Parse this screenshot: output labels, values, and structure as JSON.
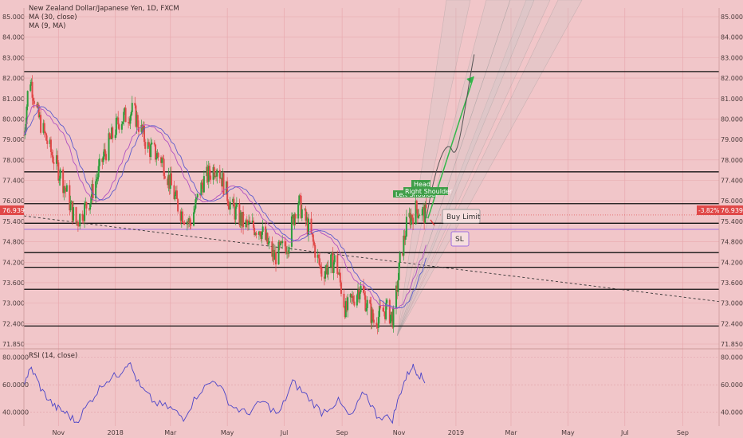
{
  "legend": {
    "title": "New Zealand Dollar/Japanese Yen, 1D, FXCM",
    "ma1": "MA (30, close)",
    "ma2": "MA (9, MA)",
    "rsi": "RSI (14, close)"
  },
  "price_marker": {
    "left": "76.939",
    "change": "-3.82%",
    "right": "76.939"
  },
  "annotations": {
    "head": "Head",
    "right_shoulder": "Right Shoulder",
    "left_shoulder": "Left Shoulder",
    "buy_limit": "Buy Limit",
    "sl": "SL"
  },
  "colors": {
    "background": "#f1c6c9",
    "bull": "#2e9e3c",
    "bear": "#e04848",
    "ma1": "#b050c0",
    "ma2": "#5c5ccc",
    "rsi": "#4a44c8",
    "projection": "#33b84a",
    "sl_box": "#a070e0"
  },
  "chart_data": [
    {
      "type": "candlestick",
      "title": "New Zealand Dollar/Japanese Yen, 1D, FXCM",
      "x_labels": [
        "Nov",
        "2018",
        "Mar",
        "May",
        "Jul",
        "Sep",
        "Nov",
        "2019",
        "Mar",
        "May",
        "Jul",
        "Sep"
      ],
      "x_range": [
        "2017-09-25",
        "2019-10-10"
      ],
      "ylim": [
        71.5,
        85.4
      ],
      "y_ticks": [
        "85.000",
        "84.000",
        "83.000",
        "82.000",
        "81.000",
        "80.000",
        "79.000",
        "78.000",
        "77.400",
        "76.000",
        "75.400",
        "74.800",
        "74.200",
        "73.600",
        "73.000",
        "72.400",
        "71.850"
      ],
      "horizontal_levels": [
        82.8,
        78.7,
        77.4,
        76.6,
        75.4,
        74.8,
        73.9,
        72.4
      ],
      "last_price": 76.939,
      "trendline": {
        "from": [
          "2017-09-25",
          76.9
        ],
        "to": [
          "2019-10-10",
          73.4
        ]
      },
      "price_path": [
        [
          "2017-09-25",
          80.2
        ],
        [
          "2017-10-01",
          82.7
        ],
        [
          "2017-10-10",
          81.0
        ],
        [
          "2017-10-22",
          79.7
        ],
        [
          "2017-11-05",
          78.4
        ],
        [
          "2017-11-20",
          76.6
        ],
        [
          "2017-12-05",
          77.6
        ],
        [
          "2017-12-20",
          79.4
        ],
        [
          "2018-01-05",
          80.8
        ],
        [
          "2018-01-20",
          81.2
        ],
        [
          "2018-02-05",
          79.7
        ],
        [
          "2018-02-20",
          79.2
        ],
        [
          "2018-03-10",
          77.2
        ],
        [
          "2018-03-22",
          76.6
        ],
        [
          "2018-04-05",
          78.3
        ],
        [
          "2018-04-20",
          79.0
        ],
        [
          "2018-05-05",
          77.3
        ],
        [
          "2018-05-20",
          76.5
        ],
        [
          "2018-06-05",
          76.4
        ],
        [
          "2018-06-20",
          75.2
        ],
        [
          "2018-07-05",
          75.8
        ],
        [
          "2018-07-15",
          77.6
        ],
        [
          "2018-07-28",
          76.3
        ],
        [
          "2018-08-10",
          74.6
        ],
        [
          "2018-08-25",
          75.1
        ],
        [
          "2018-09-05",
          73.0
        ],
        [
          "2018-09-20",
          74.0
        ],
        [
          "2018-10-05",
          72.6
        ],
        [
          "2018-10-18",
          73.1
        ],
        [
          "2018-10-26",
          72.7
        ],
        [
          "2018-11-02",
          75.0
        ],
        [
          "2018-11-10",
          76.7
        ],
        [
          "2018-11-20",
          77.2
        ],
        [
          "2018-11-30",
          76.9
        ]
      ],
      "projection_arrow": {
        "from": [
          "2018-12-02",
          76.8
        ],
        "to": [
          "2019-01-20",
          82.6
        ]
      }
    },
    {
      "type": "line",
      "title": "RSI (14, close)",
      "ylim": [
        30,
        85
      ],
      "y_ticks": [
        "80.0000",
        "60.0000",
        "40.0000"
      ],
      "values": [
        [
          "2017-09-25",
          62
        ],
        [
          "2017-10-03",
          72
        ],
        [
          "2017-10-15",
          55
        ],
        [
          "2017-10-28",
          44
        ],
        [
          "2017-11-08",
          40
        ],
        [
          "2017-11-20",
          33
        ],
        [
          "2017-12-05",
          48
        ],
        [
          "2017-12-20",
          62
        ],
        [
          "2018-01-05",
          68
        ],
        [
          "2018-01-15",
          77
        ],
        [
          "2018-01-28",
          58
        ],
        [
          "2018-02-12",
          47
        ],
        [
          "2018-03-01",
          43
        ],
        [
          "2018-03-15",
          36
        ],
        [
          "2018-04-01",
          55
        ],
        [
          "2018-04-18",
          64
        ],
        [
          "2018-05-05",
          45
        ],
        [
          "2018-05-22",
          39
        ],
        [
          "2018-06-08",
          48
        ],
        [
          "2018-06-25",
          38
        ],
        [
          "2018-07-10",
          62
        ],
        [
          "2018-07-25",
          52
        ],
        [
          "2018-08-10",
          40
        ],
        [
          "2018-08-28",
          48
        ],
        [
          "2018-09-10",
          36
        ],
        [
          "2018-09-25",
          55
        ],
        [
          "2018-10-08",
          38
        ],
        [
          "2018-10-25",
          35
        ],
        [
          "2018-11-05",
          60
        ],
        [
          "2018-11-15",
          74
        ],
        [
          "2018-11-22",
          68
        ],
        [
          "2018-11-30",
          62
        ]
      ]
    }
  ]
}
